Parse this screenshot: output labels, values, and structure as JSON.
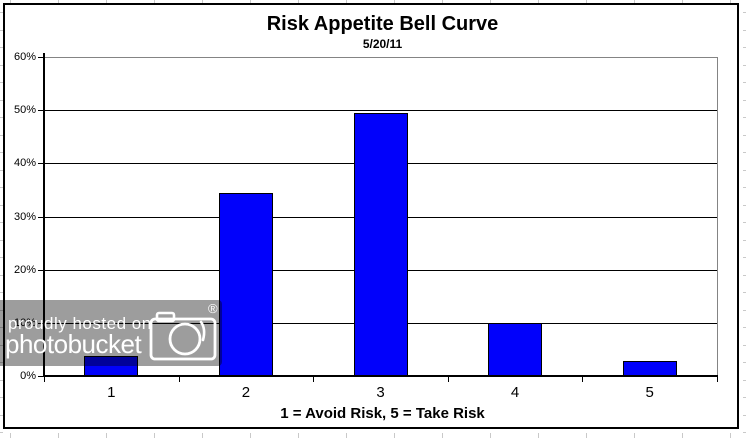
{
  "chart_data": {
    "type": "bar",
    "title": "Risk Appetite Bell Curve",
    "subtitle": "5/20/11",
    "categories": [
      "1",
      "2",
      "3",
      "4",
      "5"
    ],
    "values": [
      3.8,
      34.5,
      49.5,
      10,
      2.75
    ],
    "xlabel": "1 = Avoid Risk, 5 = Take Risk",
    "ylabel": "",
    "ylim": [
      0,
      60
    ],
    "y_tick_step": 10,
    "y_tick_labels": [
      "0%",
      "10%",
      "20%",
      "30%",
      "40%",
      "50%",
      "60%"
    ],
    "grid": true,
    "legend": false,
    "bar_color": "#0101fb",
    "bar_border_color": "#000000"
  },
  "watermark": {
    "line1": "proudly hosted on",
    "line2": "photobucket",
    "registered_mark": "®",
    "band_color": "#9d9d9d",
    "text_color": "#ffffff"
  }
}
